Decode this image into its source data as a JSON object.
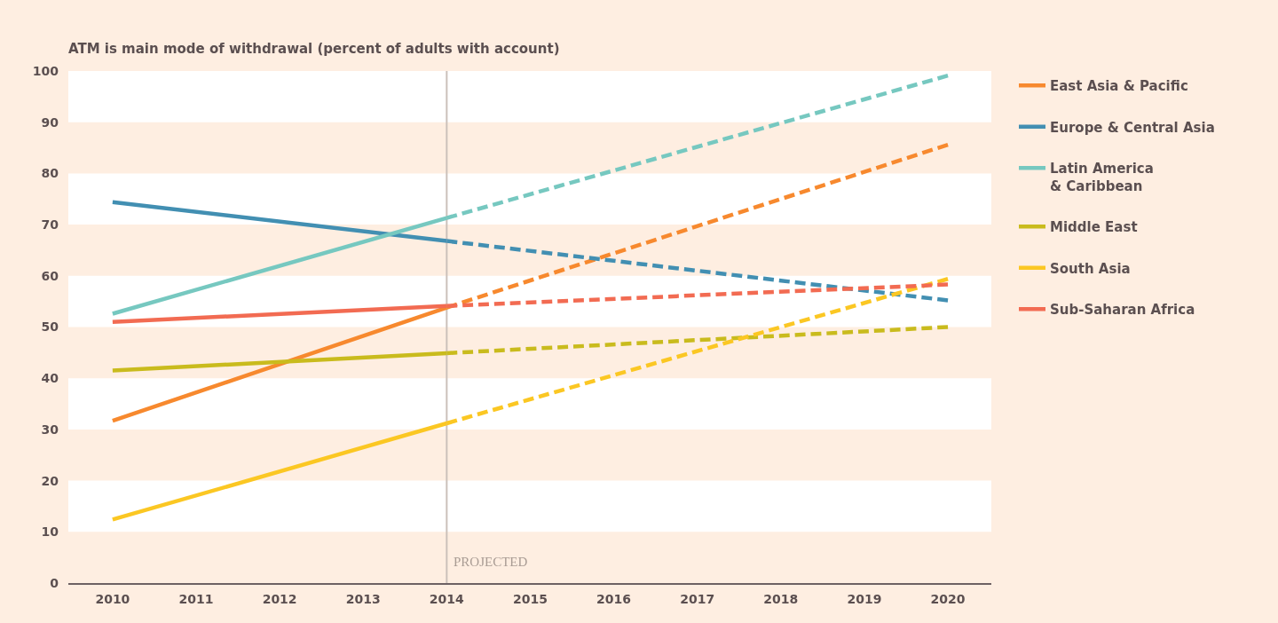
{
  "chart_data": {
    "type": "line",
    "title": "ATM is main mode of withdrawal (percent of adults with account)",
    "xlim": [
      2009.47,
      2020.52
    ],
    "xticks": [
      2010,
      2011,
      2012,
      2013,
      2014,
      2015,
      2016,
      2017,
      2018,
      2019,
      2020
    ],
    "ylim": [
      0,
      100
    ],
    "yticks": [
      0,
      10,
      20,
      30,
      40,
      50,
      60,
      70,
      80,
      90,
      100
    ],
    "grid": false,
    "legend": "right",
    "bands": [
      {
        "axis": "y",
        "from": 10,
        "to": 20,
        "color": "#ffffff"
      },
      {
        "axis": "y",
        "from": 30,
        "to": 40,
        "color": "#ffffff"
      },
      {
        "axis": "y",
        "from": 50,
        "to": 60,
        "color": "#ffffff"
      },
      {
        "axis": "y",
        "from": 70,
        "to": 80,
        "color": "#ffffff"
      },
      {
        "axis": "y",
        "from": 90,
        "to": 100,
        "color": "#ffffff"
      }
    ],
    "ref_lines": [
      {
        "axis": "x",
        "value": 2014,
        "label": "PROJECTED",
        "color": "#cbc1ba"
      }
    ],
    "series": [
      {
        "name": "East Asia & Pacific",
        "color": "#f7892e",
        "line_style": "solid",
        "x": [
          2010,
          2014
        ],
        "values": [
          31.7,
          53.8
        ]
      },
      {
        "name": "Europe & Central Asia",
        "color": "#428fb2",
        "line_style": "solid",
        "x": [
          2010,
          2014
        ],
        "values": [
          74.4,
          66.8
        ]
      },
      {
        "name": "Latin America\n& Caribbean",
        "color": "#76c8c0",
        "line_style": "solid",
        "x": [
          2010,
          2014
        ],
        "values": [
          52.6,
          71.3
        ]
      },
      {
        "name": "Middle East",
        "color": "#c9bb1d",
        "line_style": "solid",
        "x": [
          2010,
          2014
        ],
        "values": [
          41.5,
          44.9
        ]
      },
      {
        "name": "South Asia",
        "color": "#fbc723",
        "line_style": "solid",
        "x": [
          2010,
          2014
        ],
        "values": [
          12.4,
          31.2
        ]
      },
      {
        "name": "Sub-Saharan Africa",
        "color": "#f26b52",
        "line_style": "solid",
        "x": [
          2010,
          2014
        ],
        "values": [
          51.0,
          54.1
        ]
      },
      {
        "color": "#f7892e",
        "line_style": "dashed",
        "x": [
          2014,
          2020
        ],
        "values": [
          53.8,
          85.6
        ]
      },
      {
        "color": "#428fb2",
        "line_style": "dashed",
        "x": [
          2014,
          2020
        ],
        "values": [
          66.8,
          55.2
        ]
      },
      {
        "color": "#76c8c0",
        "line_style": "dashed",
        "x": [
          2014,
          2020
        ],
        "values": [
          71.3,
          99.1
        ]
      },
      {
        "color": "#c9bb1d",
        "line_style": "dashed",
        "x": [
          2014,
          2020
        ],
        "values": [
          44.9,
          50.0
        ]
      },
      {
        "color": "#fbc723",
        "line_style": "dashed",
        "x": [
          2014,
          2020
        ],
        "values": [
          31.2,
          59.4
        ]
      },
      {
        "color": "#f26b52",
        "line_style": "dashed",
        "x": [
          2014,
          2020
        ],
        "values": [
          54.1,
          58.3
        ]
      }
    ]
  }
}
